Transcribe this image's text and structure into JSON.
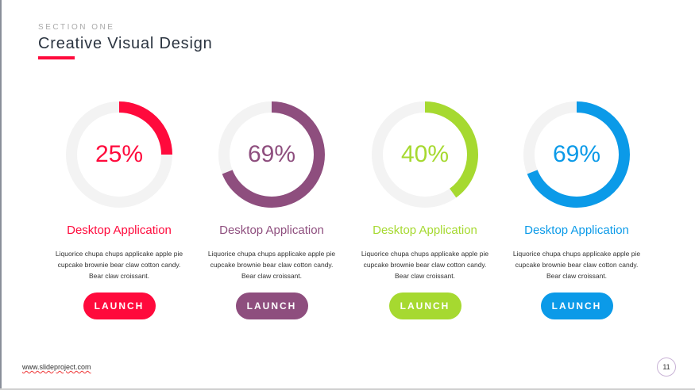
{
  "header": {
    "section": "SECTION ONE",
    "title": "Creative Visual Design",
    "accent": "#ff0a3c"
  },
  "cards": [
    {
      "percent": 25,
      "percent_label": "25%",
      "label": "Desktop Application",
      "description": "Liquorice chupa chups applicake apple pie cupcake brownie bear claw cotton candy. Bear claw croissant.",
      "button": "LAUNCH",
      "color": "#ff0a3c"
    },
    {
      "percent": 69,
      "percent_label": "69%",
      "label": "Desktop Application",
      "description": "Liquorice chupa chups applicake apple pie cupcake brownie bear claw cotton candy. Bear claw croissant.",
      "button": "LAUNCH",
      "color": "#8e4e7e"
    },
    {
      "percent": 40,
      "percent_label": "40%",
      "label": "Desktop Application",
      "description": "Liquorice chupa chups applicake apple pie cupcake brownie bear claw cotton candy. Bear claw croissant.",
      "button": "LAUNCH",
      "color": "#a6d930"
    },
    {
      "percent": 69,
      "percent_label": "69%",
      "label": "Desktop Application",
      "description": "Liquorice chupa chups applicake apple pie cupcake brownie bear claw cotton candy. Bear claw croissant.",
      "button": "LAUNCH",
      "color": "#0b9ae8"
    }
  ],
  "footer": {
    "url": "www.slideproject.com",
    "page": "11"
  }
}
